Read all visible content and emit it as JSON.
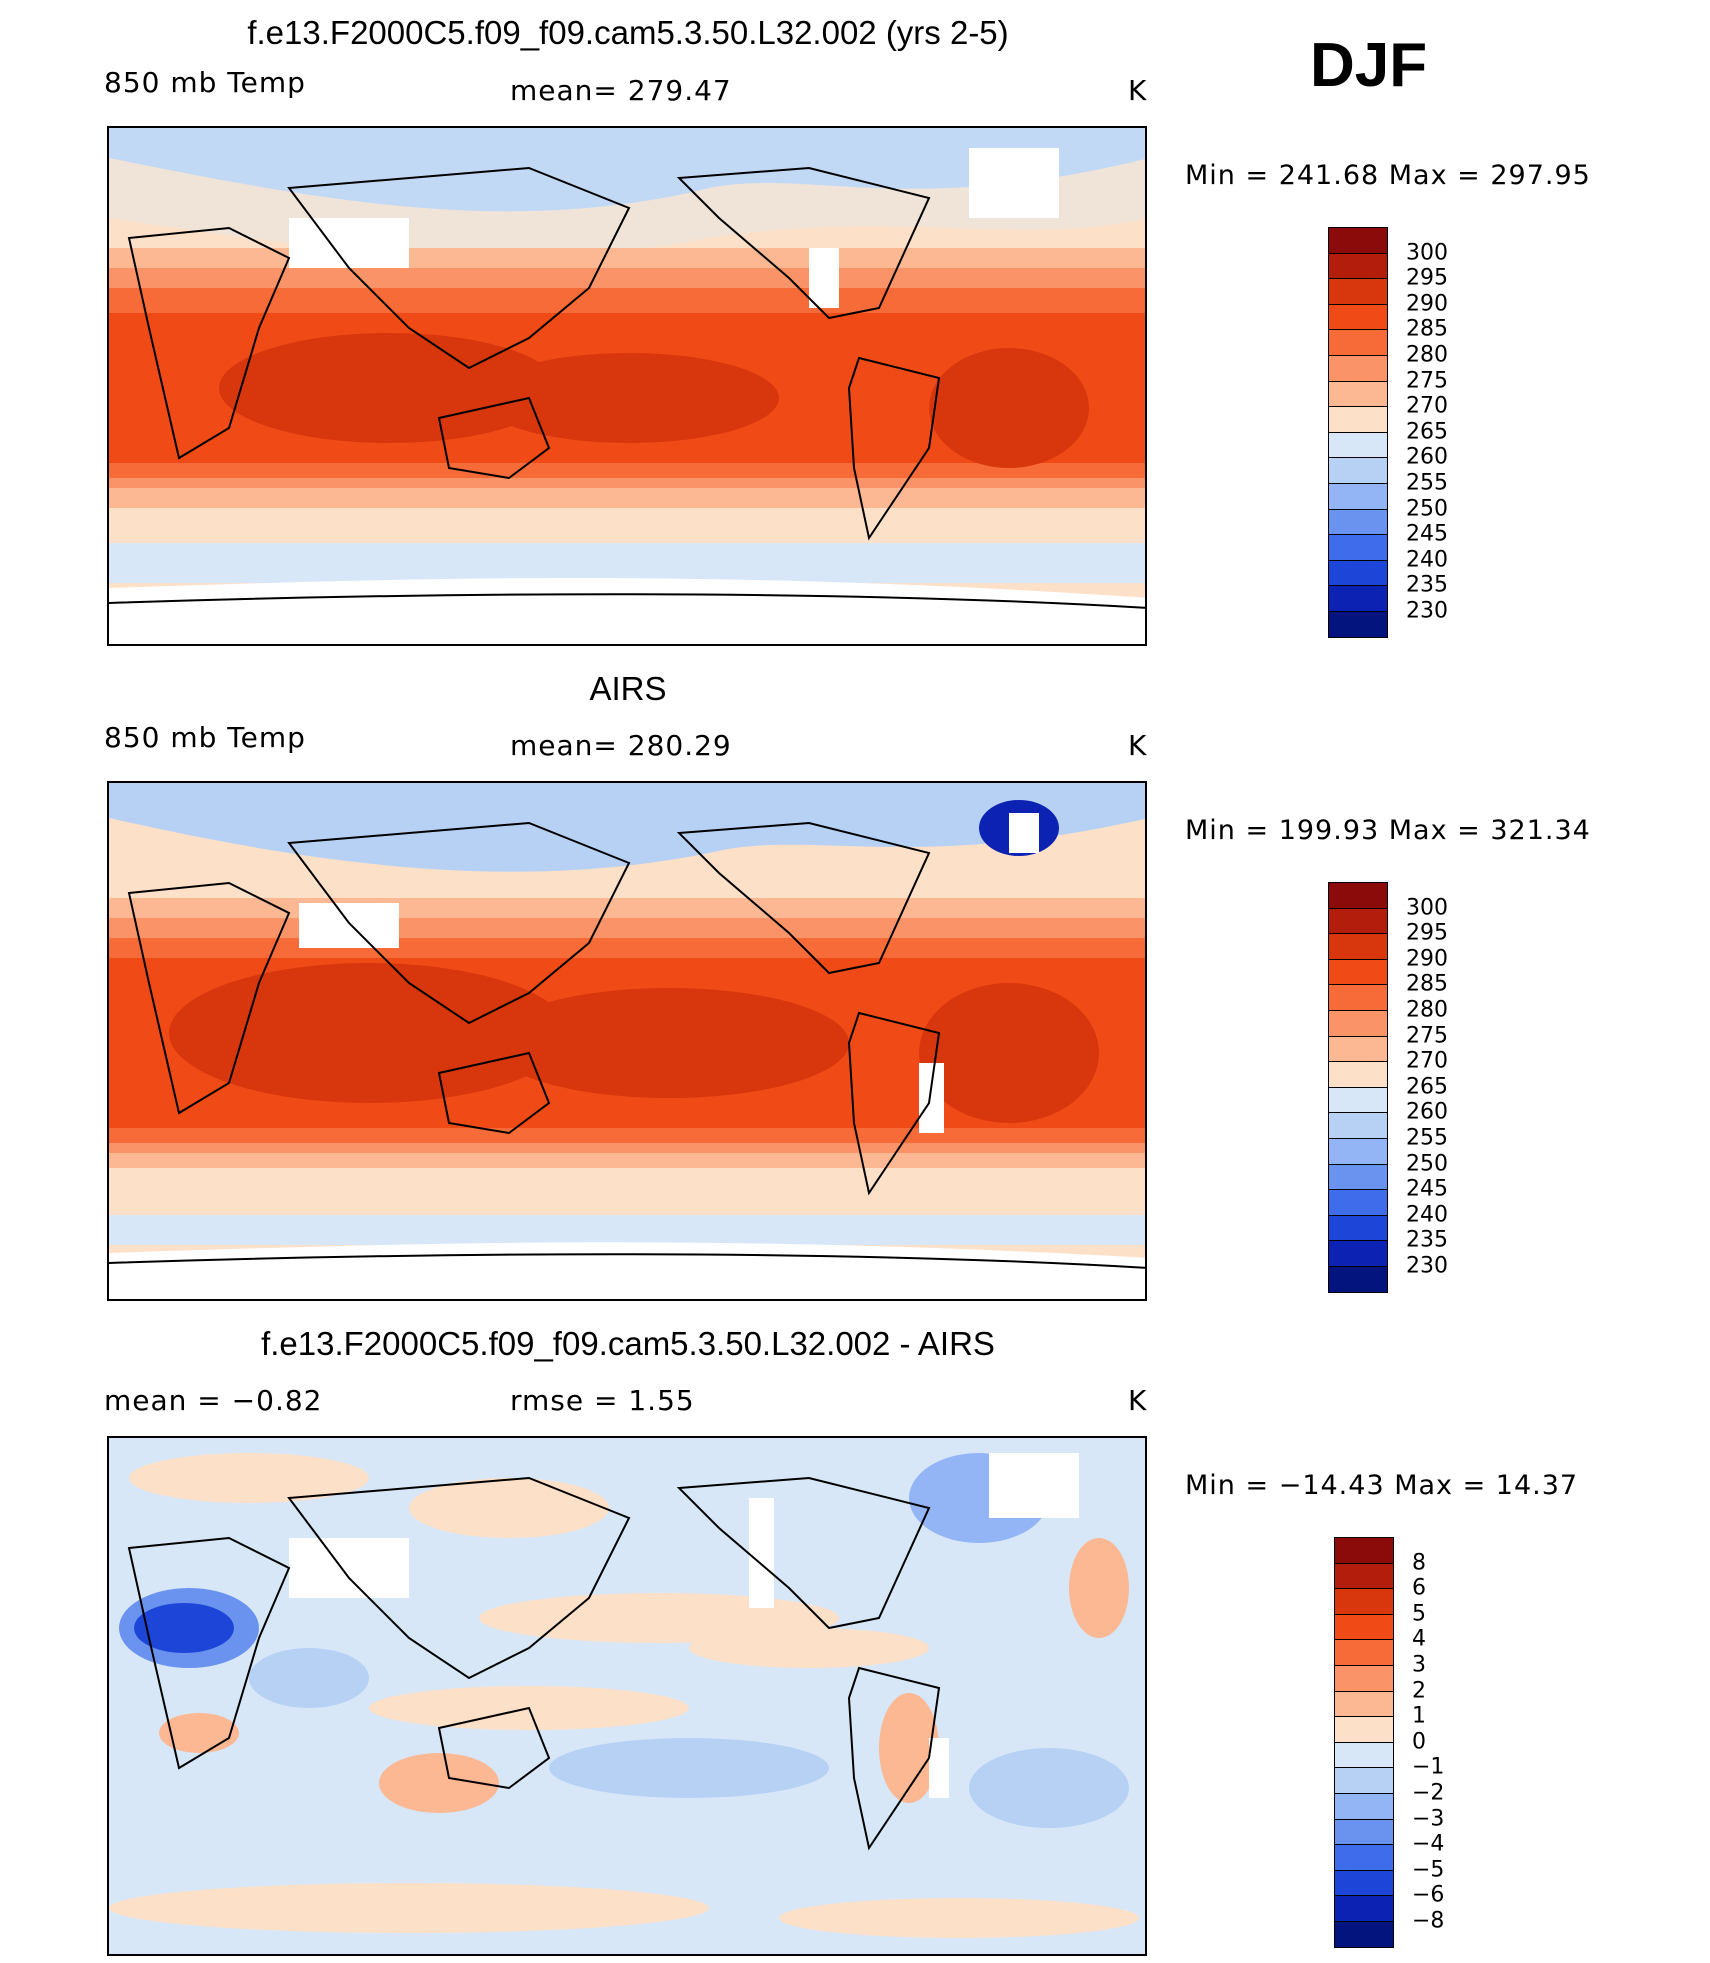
{
  "season": "DJF",
  "panels": [
    {
      "title": "f.e13.F2000C5.f09_f09.cam5.3.50.L32.002 (yrs 2-5)",
      "left_label": "850 mb Temp",
      "center_label": "mean= 279.47",
      "right_label": "K",
      "minmax": "Min = 241.68 Max = 297.95",
      "colorbar": [
        "300",
        "295",
        "290",
        "285",
        "280",
        "275",
        "270",
        "265",
        "260",
        "255",
        "250",
        "245",
        "240",
        "235",
        "230"
      ],
      "colors": [
        "#8b0b0b",
        "#b31d0b",
        "#d8360c",
        "#f04a16",
        "#f76b38",
        "#fa9468",
        "#fbb892",
        "#fde0c8",
        "#d7e7f7",
        "#b7d1f5",
        "#93b5f5",
        "#6a93f0",
        "#3f6cea",
        "#1d46d9",
        "#0c22b3",
        "#04147f"
      ]
    },
    {
      "title": "AIRS",
      "left_label": "850 mb Temp",
      "center_label": "mean= 280.29",
      "right_label": "K",
      "minmax": "Min = 199.93 Max = 321.34",
      "colorbar": [
        "300",
        "295",
        "290",
        "285",
        "280",
        "275",
        "270",
        "265",
        "260",
        "255",
        "250",
        "245",
        "240",
        "235",
        "230"
      ],
      "colors": [
        "#8b0b0b",
        "#b31d0b",
        "#d8360c",
        "#f04a16",
        "#f76b38",
        "#fa9468",
        "#fbb892",
        "#fde0c8",
        "#d7e7f7",
        "#b7d1f5",
        "#93b5f5",
        "#6a93f0",
        "#3f6cea",
        "#1d46d9",
        "#0c22b3",
        "#04147f"
      ]
    },
    {
      "title": "f.e13.F2000C5.f09_f09.cam5.3.50.L32.002 - AIRS",
      "left_label": "mean =   −0.82",
      "center_label": "rmse =    1.55",
      "right_label": "K",
      "minmax": "Min = −14.43 Max =  14.37",
      "colorbar": [
        "8",
        "6",
        "5",
        "4",
        "3",
        "2",
        "1",
        "0",
        "−1",
        "−2",
        "−3",
        "−4",
        "−5",
        "−6",
        "−8"
      ],
      "colors": [
        "#8b0b0b",
        "#b31d0b",
        "#d8360c",
        "#f04a16",
        "#f76b38",
        "#fa9468",
        "#fbb892",
        "#fde0c8",
        "#d7e7f7",
        "#b7d1f5",
        "#93b5f5",
        "#6a93f0",
        "#3f6cea",
        "#1d46d9",
        "#0c22b3",
        "#04147f"
      ]
    }
  ]
}
